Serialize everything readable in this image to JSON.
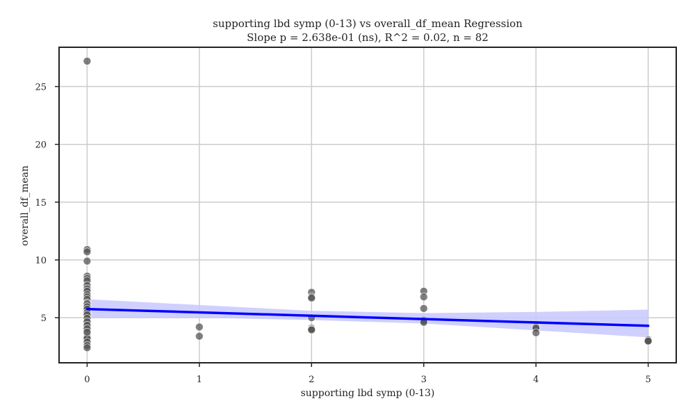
{
  "chart_data": {
    "type": "scatter",
    "title": "supporting lbd symp (0-13) vs overall_df_mean Regression",
    "subtitle": "Slope p = 2.638e-01 (ns), R^2 = 0.02, n = 82",
    "xlabel": "supporting lbd symp (0-13)",
    "ylabel": "overall_df_mean",
    "xlim": [
      -0.25,
      5.25
    ],
    "ylim": [
      1.1,
      28.4
    ],
    "xticks": [
      0,
      1,
      2,
      3,
      4,
      5
    ],
    "xtick_labels": [
      "0",
      "1",
      "2",
      "3",
      "4",
      "5"
    ],
    "yticks": [
      5,
      10,
      15,
      20,
      25
    ],
    "ytick_labels": [
      "5",
      "10",
      "15",
      "20",
      "25"
    ],
    "grid": true,
    "point_color": "#555555",
    "line_color": "#0000ff",
    "band_color": "#c8c8ff",
    "points": [
      [
        0,
        27.2
      ],
      [
        0,
        10.9
      ],
      [
        0,
        10.7
      ],
      [
        0,
        9.9
      ],
      [
        0,
        8.6
      ],
      [
        0,
        8.4
      ],
      [
        0,
        8.2
      ],
      [
        0,
        7.8
      ],
      [
        0,
        7.5
      ],
      [
        0,
        7.3
      ],
      [
        0,
        7.0
      ],
      [
        0,
        6.8
      ],
      [
        0,
        6.6
      ],
      [
        0,
        6.3
      ],
      [
        0,
        6.1
      ],
      [
        0,
        6.0
      ],
      [
        0,
        5.9
      ],
      [
        0,
        5.8
      ],
      [
        0,
        5.7
      ],
      [
        0,
        5.6
      ],
      [
        0,
        5.5
      ],
      [
        0,
        5.4
      ],
      [
        0,
        5.3
      ],
      [
        0,
        5.2
      ],
      [
        0,
        5.1
      ],
      [
        0,
        5.0
      ],
      [
        0,
        4.9
      ],
      [
        0,
        4.8
      ],
      [
        0,
        4.7
      ],
      [
        0,
        4.6
      ],
      [
        0,
        4.5
      ],
      [
        0,
        4.4
      ],
      [
        0,
        4.3
      ],
      [
        0,
        4.2
      ],
      [
        0,
        4.1
      ],
      [
        0,
        4.0
      ],
      [
        0,
        3.9
      ],
      [
        0,
        3.8
      ],
      [
        0,
        3.6
      ],
      [
        0,
        3.5
      ],
      [
        0,
        3.4
      ],
      [
        0,
        3.3
      ],
      [
        0,
        3.2
      ],
      [
        0,
        2.9
      ],
      [
        0,
        2.6
      ],
      [
        0,
        2.4
      ],
      [
        0,
        6.2
      ],
      [
        0,
        5.95
      ],
      [
        0,
        5.75
      ],
      [
        0,
        5.45
      ],
      [
        0,
        5.25
      ],
      [
        0,
        4.95
      ],
      [
        0,
        4.65
      ],
      [
        0,
        4.35
      ],
      [
        0,
        4.05
      ],
      [
        0,
        3.75
      ],
      [
        1,
        4.2
      ],
      [
        1,
        3.4
      ],
      [
        2,
        7.2
      ],
      [
        2,
        6.8
      ],
      [
        2,
        6.7
      ],
      [
        2,
        5.0
      ],
      [
        2,
        4.1
      ],
      [
        2,
        4.0
      ],
      [
        2,
        3.95
      ],
      [
        3,
        7.3
      ],
      [
        3,
        6.8
      ],
      [
        3,
        5.8
      ],
      [
        3,
        4.8
      ],
      [
        3,
        4.7
      ],
      [
        3,
        4.6
      ],
      [
        4,
        4.2
      ],
      [
        4,
        4.1
      ],
      [
        4,
        3.7
      ],
      [
        5,
        3.1
      ],
      [
        5,
        3.05
      ],
      [
        5,
        3.0
      ],
      [
        5,
        3.0
      ],
      [
        5,
        2.95
      ],
      [
        5,
        3.1
      ],
      [
        5,
        3.0
      ],
      [
        5,
        2.98
      ]
    ],
    "regression_line": {
      "x": [
        0,
        5
      ],
      "y": [
        5.75,
        4.3
      ]
    },
    "confidence_band": {
      "x": [
        0,
        1,
        2,
        3,
        4,
        5
      ],
      "upper": [
        6.6,
        6.1,
        5.6,
        5.4,
        5.5,
        5.7
      ],
      "lower": [
        5.0,
        5.0,
        4.8,
        4.5,
        3.9,
        3.3
      ]
    }
  }
}
